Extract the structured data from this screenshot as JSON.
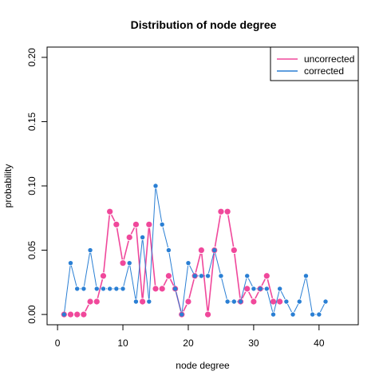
{
  "chart_data": {
    "type": "line",
    "title": "Distribution of node degree",
    "xlabel": "node degree",
    "ylabel": "probability",
    "xlim": [
      -1.6,
      46
    ],
    "ylim": [
      -0.008,
      0.208
    ],
    "xticks": [
      0,
      10,
      20,
      30,
      40
    ],
    "yticks": [
      0.0,
      0.05,
      0.1,
      0.15,
      0.2
    ],
    "ytick_labels": [
      "0.00",
      "0.05",
      "0.10",
      "0.15",
      "0.20"
    ],
    "grid": false,
    "legend_position": "top-right",
    "series": [
      {
        "name": "uncorrected",
        "color": "#f0489b",
        "x": [
          1,
          2,
          3,
          4,
          5,
          6,
          7,
          8,
          9,
          10,
          11,
          12,
          13,
          14,
          15,
          16,
          17,
          18,
          19,
          20,
          21,
          22,
          23,
          24,
          25,
          26,
          27,
          28,
          29,
          30,
          31,
          32,
          33,
          34
        ],
        "y": [
          0,
          0,
          0,
          0,
          0.01,
          0.01,
          0.03,
          0.08,
          0.07,
          0.04,
          0.06,
          0.07,
          0.01,
          0.07,
          0.02,
          0.02,
          0.03,
          0.02,
          0,
          0.01,
          0.03,
          0.05,
          0,
          0.05,
          0.08,
          0.08,
          0.05,
          0.01,
          0.02,
          0.01,
          0.02,
          0.03,
          0.01,
          0.01
        ]
      },
      {
        "name": "corrected",
        "color": "#2a7fd4",
        "x": [
          1,
          2,
          3,
          4,
          5,
          6,
          7,
          8,
          9,
          10,
          11,
          12,
          13,
          14,
          15,
          16,
          17,
          18,
          19,
          20,
          21,
          22,
          23,
          24,
          25,
          26,
          27,
          28,
          29,
          30,
          31,
          32,
          33,
          34,
          35,
          36,
          37,
          38,
          39,
          40,
          41
        ],
        "y": [
          0,
          0.04,
          0.02,
          0.02,
          0.05,
          0.02,
          0.02,
          0.02,
          0.02,
          0.02,
          0.04,
          0.01,
          0.06,
          0.01,
          0.1,
          0.07,
          0.05,
          0.02,
          0,
          0.04,
          0.03,
          0.03,
          0.03,
          0.05,
          0.03,
          0.01,
          0.01,
          0.01,
          0.03,
          0.02,
          0.02,
          0.02,
          0,
          0.02,
          0.01,
          0,
          0.01,
          0.03,
          0,
          0,
          0.01
        ]
      }
    ]
  }
}
